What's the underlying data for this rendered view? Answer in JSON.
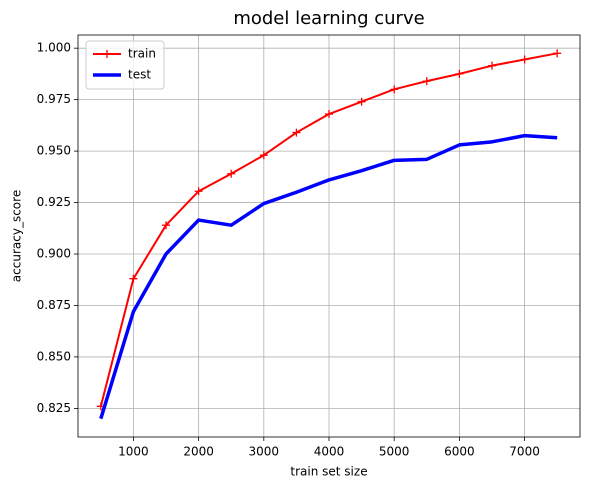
{
  "chart_data": {
    "type": "line",
    "title": "model learning curve",
    "x_label": "train set size",
    "y_label": "accuracy_score",
    "x": [
      500,
      1000,
      1500,
      2000,
      2500,
      3000,
      3500,
      4000,
      4500,
      5000,
      5500,
      6000,
      6500,
      7000,
      7500
    ],
    "series": [
      {
        "name": "train",
        "color": "#ff0000",
        "marker": "+",
        "line_width": 2,
        "values": [
          0.826,
          0.888,
          0.914,
          0.9305,
          0.939,
          0.948,
          0.959,
          0.968,
          0.974,
          0.98,
          0.984,
          0.9875,
          0.9915,
          0.9945,
          0.9975
        ]
      },
      {
        "name": "test",
        "color": "#0000ff",
        "line_width": 3.5,
        "values": [
          0.82,
          0.872,
          0.9,
          0.9165,
          0.914,
          0.9245,
          0.93,
          0.936,
          0.9405,
          0.9455,
          0.946,
          0.953,
          0.9545,
          0.9575,
          0.9565
        ]
      }
    ],
    "xlim": [
      150,
      7850
    ],
    "ylim": [
      0.8111,
      1.0064
    ],
    "xticks": [
      1000,
      2000,
      3000,
      4000,
      5000,
      6000,
      7000
    ],
    "yticks": [
      {
        "value": 0.825,
        "label": "0.825"
      },
      {
        "value": 0.85,
        "label": "0.850"
      },
      {
        "value": 0.875,
        "label": "0.875"
      },
      {
        "value": 0.9,
        "label": "0.900"
      },
      {
        "value": 0.925,
        "label": "0.925"
      },
      {
        "value": 0.95,
        "label": "0.950"
      },
      {
        "value": 0.975,
        "label": "0.975"
      },
      {
        "value": 1.0,
        "label": "1.000"
      }
    ],
    "grid": true,
    "legend": "upper left"
  }
}
